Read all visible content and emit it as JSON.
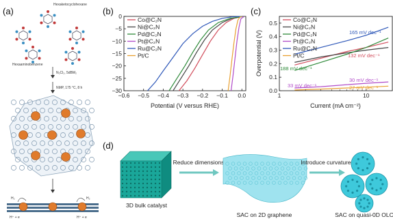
{
  "panels": {
    "a": {
      "label": "(a)",
      "mol_top_label": "Hexaketocyclohexane",
      "mol_bottom_label": "Hexaaminobenzene",
      "reagent_label": "N₂Cl₂, 5dBM₂",
      "condition_label": "NMP, 175 °C, 8 h",
      "h2_left": "H₂",
      "h2_right": "H₂",
      "proton_left": "H⁺ + e",
      "proton_right": "H⁺ + e"
    },
    "d": {
      "label": "(d)",
      "arrow1": "Reduce dimensions",
      "arrow2": "Introduce curvature",
      "cap1": "3D bulk catalyst",
      "cap2": "SAC on 2D graphene",
      "cap3": "SAC on quasi-0D OLC"
    }
  },
  "colors": {
    "Co": "#d14b5a",
    "Ni": "#444444",
    "Pd": "#2f8a3a",
    "Pt": "#b04bc8",
    "Ru": "#2c56b8",
    "PtC": "#e8a030",
    "cube": "#1aa79a",
    "sphere": "#3ec9db",
    "metal": "#e07b2c"
  },
  "chart_data": [
    {
      "type": "line",
      "panel_label": "(b)",
      "xlabel": "Potential (V versus RHE)",
      "ylabel": "",
      "xlim": [
        -0.6,
        0.02
      ],
      "ylim": [
        -30,
        0
      ],
      "xticks": [
        "−0.6",
        "−0.5",
        "−0.4",
        "−0.3",
        "−0.2",
        "−0.1",
        "0.0"
      ],
      "yticks": [
        "0",
        "−5",
        "−10",
        "−15",
        "−20",
        "−25",
        "−30"
      ],
      "legend_position": "top-left",
      "series": [
        {
          "name": "Co@C₂N",
          "color": "Co",
          "points": [
            [
              -0.32,
              -30
            ],
            [
              -0.28,
              -26
            ],
            [
              -0.24,
              -21
            ],
            [
              -0.2,
              -15.5
            ],
            [
              -0.16,
              -10
            ],
            [
              -0.12,
              -5.5
            ],
            [
              -0.08,
              -2.5
            ],
            [
              -0.04,
              -0.8
            ],
            [
              0.0,
              -0.1
            ]
          ]
        },
        {
          "name": "Ni@C₂N",
          "color": "Ni",
          "points": [
            [
              -0.35,
              -30
            ],
            [
              -0.31,
              -25
            ],
            [
              -0.27,
              -20
            ],
            [
              -0.23,
              -14.5
            ],
            [
              -0.19,
              -9.5
            ],
            [
              -0.15,
              -5.5
            ],
            [
              -0.1,
              -2.5
            ],
            [
              -0.05,
              -0.8
            ],
            [
              0.0,
              -0.1
            ]
          ]
        },
        {
          "name": "Pd@C₂N",
          "color": "Pd",
          "points": [
            [
              -0.37,
              -30
            ],
            [
              -0.33,
              -25
            ],
            [
              -0.29,
              -20
            ],
            [
              -0.25,
              -14.5
            ],
            [
              -0.21,
              -9.5
            ],
            [
              -0.17,
              -5.5
            ],
            [
              -0.12,
              -2.5
            ],
            [
              -0.06,
              -0.8
            ],
            [
              0.0,
              -0.1
            ]
          ]
        },
        {
          "name": "Pt@C₂N",
          "color": "Pt",
          "points": [
            [
              -0.055,
              -30
            ],
            [
              -0.045,
              -24
            ],
            [
              -0.035,
              -17
            ],
            [
              -0.025,
              -10
            ],
            [
              -0.015,
              -4.5
            ],
            [
              -0.005,
              -1
            ],
            [
              0.01,
              -0.1
            ]
          ]
        },
        {
          "name": "Ru@C₂N",
          "color": "Ru",
          "points": [
            [
              -0.48,
              -30
            ],
            [
              -0.44,
              -26.5
            ],
            [
              -0.4,
              -22
            ],
            [
              -0.35,
              -16.5
            ],
            [
              -0.3,
              -11
            ],
            [
              -0.25,
              -7
            ],
            [
              -0.2,
              -4
            ],
            [
              -0.15,
              -2
            ],
            [
              -0.1,
              -0.8
            ],
            [
              -0.05,
              -0.2
            ],
            [
              0.0,
              0.0
            ]
          ]
        },
        {
          "name": "Pt/C",
          "color": "PtC",
          "points": [
            [
              -0.07,
              -30
            ],
            [
              -0.06,
              -24
            ],
            [
              -0.05,
              -17
            ],
            [
              -0.04,
              -10.5
            ],
            [
              -0.03,
              -5
            ],
            [
              -0.02,
              -1.5
            ],
            [
              -0.01,
              -0.3
            ],
            [
              0.0,
              0.0
            ]
          ]
        }
      ]
    },
    {
      "type": "line",
      "panel_label": "(c)",
      "xlabel": "Current (mA cm⁻²)",
      "ylabel": "Overpotential (V)",
      "x_scale": "log",
      "xlim": [
        1,
        20
      ],
      "ylim": [
        0.0,
        0.55
      ],
      "xticks": [
        "1",
        "10"
      ],
      "yticks": [
        "0.0",
        "0.1",
        "0.2",
        "0.3",
        "0.4",
        "0.5"
      ],
      "legend_position": "top-left",
      "annotations": [
        {
          "text": "165 mV dec⁻¹",
          "color": "Ru"
        },
        {
          "text": "132 mV dec⁻¹",
          "color": "Co"
        },
        {
          "text": "188 mV dec⁻¹",
          "color": "Pd"
        },
        {
          "text": "30 mV dec⁻¹",
          "color": "Pt"
        },
        {
          "text": "33 mV dec⁻¹",
          "color": "Pt"
        },
        {
          "text": "27 mV dec⁻¹",
          "color": "PtC"
        }
      ],
      "series": [
        {
          "name": "Co@C₂N",
          "color": "Co",
          "points": [
            [
              1.5,
              0.19
            ],
            [
              3,
              0.24
            ],
            [
              6,
              0.29
            ],
            [
              10,
              0.32
            ],
            [
              18,
              0.36
            ]
          ]
        },
        {
          "name": "Ni@C₂N",
          "color": "Ni",
          "points": [
            [
              1.5,
              0.21
            ],
            [
              3,
              0.25
            ],
            [
              6,
              0.28
            ],
            [
              10,
              0.3
            ],
            [
              18,
              0.32
            ]
          ]
        },
        {
          "name": "Pd@C₂N",
          "color": "Pd",
          "points": [
            [
              1.5,
              0.15
            ],
            [
              3,
              0.21
            ],
            [
              6,
              0.27
            ],
            [
              10,
              0.32
            ],
            [
              18,
              0.39
            ]
          ]
        },
        {
          "name": "Pt@C₂N",
          "color": "Pt",
          "points": [
            [
              1.5,
              0.02
            ],
            [
              3,
              0.03
            ],
            [
              6,
              0.045
            ],
            [
              10,
              0.055
            ],
            [
              18,
              0.065
            ]
          ]
        },
        {
          "name": "Ru@C₂N",
          "color": "Ru",
          "points": [
            [
              1.5,
              0.27
            ],
            [
              3,
              0.32
            ],
            [
              6,
              0.37
            ],
            [
              10,
              0.41
            ],
            [
              18,
              0.47
            ]
          ]
        },
        {
          "name": "Pt/C",
          "color": "PtC",
          "points": [
            [
              1.5,
              0.005
            ],
            [
              3,
              0.012
            ],
            [
              6,
              0.02
            ],
            [
              10,
              0.026
            ],
            [
              18,
              0.034
            ]
          ]
        }
      ]
    }
  ]
}
